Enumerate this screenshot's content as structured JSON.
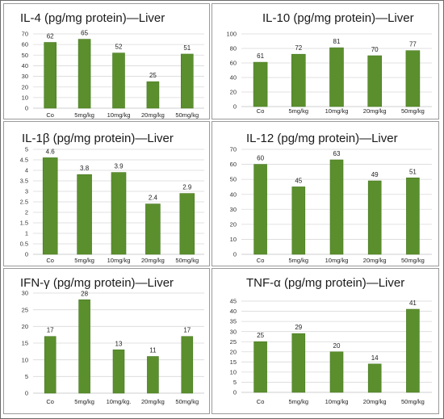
{
  "colors": {
    "bar": "#5b8f2e",
    "bar_edge": "#4a7a24",
    "grid": "#d9d9d9",
    "border": "#9a9a9a"
  },
  "chart_data": [
    {
      "type": "bar",
      "title": "IL-4 (pg/mg protein)—Liver",
      "categories": [
        "Co",
        "5mg/kg",
        "10mg/kg",
        "20mg/kg",
        "50mg/kg"
      ],
      "values": [
        62,
        65,
        52,
        25,
        51
      ],
      "data_labels": [
        "62",
        "65",
        "52",
        "25",
        "51"
      ],
      "ylim": [
        0,
        70
      ],
      "yticks": [
        0,
        10,
        20,
        30,
        40,
        50,
        60,
        70
      ],
      "ytick_labels": [
        "0",
        "10",
        "20",
        "30",
        "40",
        "50",
        "60",
        "70"
      ],
      "grid": true,
      "xlabel": "",
      "ylabel": ""
    },
    {
      "type": "bar",
      "title": "IL-10 (pg/mg protein)—Liver",
      "categories": [
        "Co",
        "5mg/kg",
        "10mg/kg",
        "20mg/kg",
        "50mg/kg"
      ],
      "values": [
        61,
        72,
        81,
        70,
        77
      ],
      "data_labels": [
        "61",
        "72",
        "81",
        "70",
        "77"
      ],
      "ylim": [
        0,
        100
      ],
      "yticks": [
        0,
        20,
        40,
        60,
        80,
        100
      ],
      "ytick_labels": [
        "0",
        "20",
        "40",
        "60",
        "80",
        "100"
      ],
      "grid": true,
      "xlabel": "",
      "ylabel": ""
    },
    {
      "type": "bar",
      "title": "IL-1β (pg/mg protein)—Liver",
      "categories": [
        "Co",
        "5mg/kg",
        "10mg/kg",
        "20mg/kg",
        "50mg/kg"
      ],
      "values": [
        4.6,
        3.8,
        3.9,
        2.4,
        2.9
      ],
      "data_labels": [
        "4.6",
        "3.8",
        "3.9",
        "2.4",
        "2.9"
      ],
      "ylim": [
        0,
        5
      ],
      "yticks": [
        0,
        0.5,
        1,
        1.5,
        2,
        2.5,
        3,
        3.5,
        4,
        4.5,
        5
      ],
      "ytick_labels": [
        "0",
        "0.5",
        "1",
        "1.5",
        "2",
        "2.5",
        "3",
        "3.5",
        "4",
        "4.5",
        "5"
      ],
      "grid": true,
      "xlabel": "",
      "ylabel": ""
    },
    {
      "type": "bar",
      "title": "IL-12 (pg/mg protein)—Liver",
      "categories": [
        "Co",
        "5mg/kg",
        "10mg/kg",
        "20mg/kg",
        "50mg/kg"
      ],
      "values": [
        60,
        45,
        63,
        49,
        51
      ],
      "data_labels": [
        "60",
        "45",
        "63",
        "49",
        "51"
      ],
      "ylim": [
        0,
        70
      ],
      "yticks": [
        0,
        10,
        20,
        30,
        40,
        50,
        60,
        70
      ],
      "ytick_labels": [
        "0",
        "10",
        "20",
        "30",
        "40",
        "50",
        "60",
        "70"
      ],
      "grid": true,
      "xlabel": "",
      "ylabel": ""
    },
    {
      "type": "bar",
      "title": "IFN-γ (pg/mg protein)—Liver",
      "categories": [
        "Co",
        "5mg/kg",
        "10mg/kg.",
        "20mg/kg",
        "50mg/kg"
      ],
      "values": [
        17,
        28,
        13,
        11,
        17
      ],
      "data_labels": [
        "17",
        "28",
        "13",
        "11",
        "17"
      ],
      "ylim": [
        0,
        30
      ],
      "yticks": [
        0,
        5,
        10,
        15,
        20,
        25,
        30
      ],
      "ytick_labels": [
        "0",
        "5",
        "10",
        "15",
        "20",
        "25",
        "30"
      ],
      "grid": true,
      "xlabel": "",
      "ylabel": ""
    },
    {
      "type": "bar",
      "title": "TNF-α (pg/mg protein)—Liver",
      "categories": [
        "Co",
        "5mg/kg",
        "10mg/kg",
        "20mg/kg",
        "50mg/kg"
      ],
      "values": [
        25,
        29,
        20,
        14,
        41
      ],
      "data_labels": [
        "25",
        "29",
        "20",
        "14",
        "41"
      ],
      "ylim": [
        0,
        45
      ],
      "yticks": [
        0,
        5,
        10,
        15,
        20,
        25,
        30,
        35,
        40,
        45
      ],
      "ytick_labels": [
        "0",
        "5",
        "10",
        "15",
        "20",
        "25",
        "30",
        "35",
        "40",
        "45"
      ],
      "grid": true,
      "xlabel": "",
      "ylabel": ""
    }
  ]
}
